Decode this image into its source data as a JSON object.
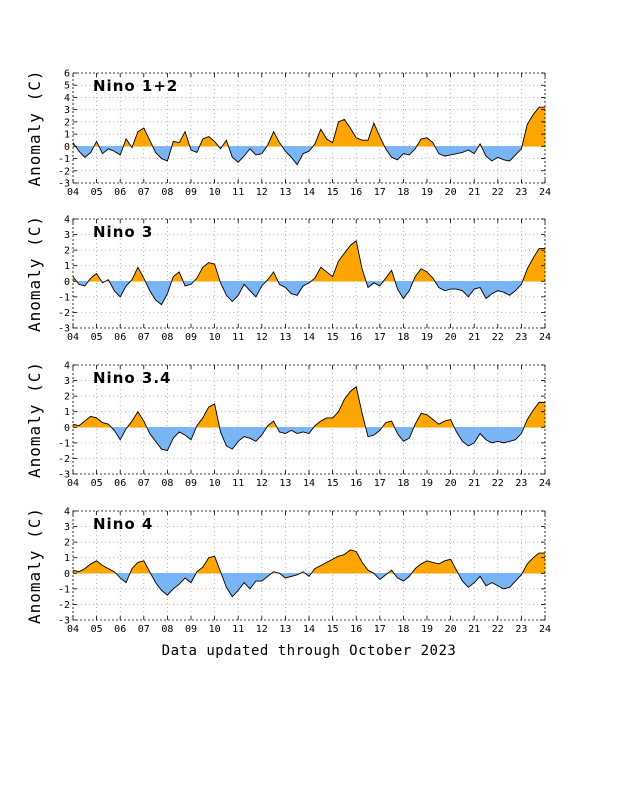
{
  "footer": "Data updated through October 2023",
  "colors": {
    "positive": "#ffa500",
    "negative": "#79b4f5",
    "line": "#000000",
    "grid": "#999999"
  },
  "chart_data": [
    {
      "type": "area",
      "title": "Nino 1+2",
      "ylabel": "Anomaly (C)",
      "ylim": [
        -3,
        6
      ],
      "yticks": [
        -3,
        -2,
        -1,
        0,
        1,
        2,
        3,
        4,
        5,
        6
      ],
      "xlim": [
        2004,
        2024
      ],
      "xticks": [
        "04",
        "05",
        "06",
        "07",
        "08",
        "09",
        "10",
        "11",
        "12",
        "13",
        "14",
        "15",
        "16",
        "17",
        "18",
        "19",
        "20",
        "21",
        "22",
        "23",
        "24"
      ],
      "grid": true,
      "x": [
        2004.0,
        2004.25,
        2004.5,
        2004.75,
        2005.0,
        2005.25,
        2005.5,
        2005.75,
        2006.0,
        2006.25,
        2006.5,
        2006.75,
        2007.0,
        2007.25,
        2007.5,
        2007.75,
        2008.0,
        2008.25,
        2008.5,
        2008.75,
        2009.0,
        2009.25,
        2009.5,
        2009.75,
        2010.0,
        2010.25,
        2010.5,
        2010.75,
        2011.0,
        2011.25,
        2011.5,
        2011.75,
        2012.0,
        2012.25,
        2012.5,
        2012.75,
        2013.0,
        2013.25,
        2013.5,
        2013.75,
        2014.0,
        2014.25,
        2014.5,
        2014.75,
        2015.0,
        2015.25,
        2015.5,
        2015.75,
        2016.0,
        2016.25,
        2016.5,
        2016.75,
        2017.0,
        2017.25,
        2017.5,
        2017.75,
        2018.0,
        2018.25,
        2018.5,
        2018.75,
        2019.0,
        2019.25,
        2019.5,
        2019.75,
        2020.0,
        2020.25,
        2020.5,
        2020.75,
        2021.0,
        2021.25,
        2021.5,
        2021.75,
        2022.0,
        2022.25,
        2022.5,
        2022.75,
        2023.0,
        2023.25,
        2023.5,
        2023.75
      ],
      "values": [
        0.3,
        -0.4,
        -0.9,
        -0.5,
        0.4,
        -0.6,
        -0.2,
        -0.4,
        -0.7,
        0.6,
        -0.1,
        1.2,
        1.5,
        0.5,
        -0.5,
        -1.0,
        -1.2,
        0.4,
        0.3,
        1.2,
        -0.3,
        -0.5,
        0.6,
        0.8,
        0.4,
        -0.2,
        0.5,
        -0.9,
        -1.3,
        -0.8,
        -0.2,
        -0.7,
        -0.6,
        0.1,
        1.2,
        0.3,
        -0.4,
        -0.9,
        -1.5,
        -0.6,
        -0.4,
        0.2,
        1.4,
        0.6,
        0.3,
        2.0,
        2.2,
        1.5,
        0.7,
        0.5,
        0.5,
        1.9,
        0.8,
        -0.2,
        -0.9,
        -1.1,
        -0.6,
        -0.7,
        -0.2,
        0.6,
        0.7,
        0.3,
        -0.6,
        -0.8,
        -0.7,
        -0.6,
        -0.5,
        -0.3,
        -0.6,
        0.2,
        -0.8,
        -1.2,
        -0.9,
        -1.1,
        -1.2,
        -0.7,
        -0.2,
        1.8,
        2.6,
        3.2
      ]
    },
    {
      "type": "area",
      "title": "Nino 3",
      "ylabel": "Anomaly (C)",
      "ylim": [
        -3,
        4
      ],
      "yticks": [
        -3,
        -2,
        -1,
        0,
        1,
        2,
        3,
        4
      ],
      "xlim": [
        2004,
        2024
      ],
      "xticks": [
        "04",
        "05",
        "06",
        "07",
        "08",
        "09",
        "10",
        "11",
        "12",
        "13",
        "14",
        "15",
        "16",
        "17",
        "18",
        "19",
        "20",
        "21",
        "22",
        "23",
        "24"
      ],
      "grid": true,
      "x": [
        2004.0,
        2004.25,
        2004.5,
        2004.75,
        2005.0,
        2005.25,
        2005.5,
        2005.75,
        2006.0,
        2006.25,
        2006.5,
        2006.75,
        2007.0,
        2007.25,
        2007.5,
        2007.75,
        2008.0,
        2008.25,
        2008.5,
        2008.75,
        2009.0,
        2009.25,
        2009.5,
        2009.75,
        2010.0,
        2010.25,
        2010.5,
        2010.75,
        2011.0,
        2011.25,
        2011.5,
        2011.75,
        2012.0,
        2012.25,
        2012.5,
        2012.75,
        2013.0,
        2013.25,
        2013.5,
        2013.75,
        2014.0,
        2014.25,
        2014.5,
        2014.75,
        2015.0,
        2015.25,
        2015.5,
        2015.75,
        2016.0,
        2016.25,
        2016.5,
        2016.75,
        2017.0,
        2017.25,
        2017.5,
        2017.75,
        2018.0,
        2018.25,
        2018.5,
        2018.75,
        2019.0,
        2019.25,
        2019.5,
        2019.75,
        2020.0,
        2020.25,
        2020.5,
        2020.75,
        2021.0,
        2021.25,
        2021.5,
        2021.75,
        2022.0,
        2022.25,
        2022.5,
        2022.75,
        2023.0,
        2023.25,
        2023.5,
        2023.75
      ],
      "values": [
        0.3,
        -0.2,
        -0.3,
        0.2,
        0.5,
        -0.1,
        0.1,
        -0.6,
        -1.0,
        -0.3,
        0.1,
        0.9,
        0.2,
        -0.6,
        -1.2,
        -1.5,
        -0.8,
        0.3,
        0.6,
        -0.3,
        -0.2,
        0.2,
        0.9,
        1.2,
        1.1,
        -0.1,
        -0.9,
        -1.3,
        -0.9,
        -0.2,
        -0.6,
        -1.0,
        -0.3,
        0.1,
        0.6,
        -0.2,
        -0.4,
        -0.8,
        -0.9,
        -0.3,
        -0.1,
        0.2,
        0.9,
        0.6,
        0.3,
        1.3,
        1.8,
        2.3,
        2.6,
        0.8,
        -0.4,
        -0.1,
        -0.3,
        0.2,
        0.7,
        -0.5,
        -1.1,
        -0.6,
        0.3,
        0.8,
        0.6,
        0.2,
        -0.4,
        -0.6,
        -0.5,
        -0.5,
        -0.6,
        -1.0,
        -0.5,
        -0.4,
        -1.1,
        -0.8,
        -0.6,
        -0.7,
        -0.9,
        -0.6,
        -0.2,
        0.8,
        1.5,
        2.1
      ]
    },
    {
      "type": "area",
      "title": "Nino 3.4",
      "ylabel": "Anomaly (C)",
      "ylim": [
        -3,
        4
      ],
      "yticks": [
        -3,
        -2,
        -1,
        0,
        1,
        2,
        3,
        4
      ],
      "xlim": [
        2004,
        2024
      ],
      "xticks": [
        "04",
        "05",
        "06",
        "07",
        "08",
        "09",
        "10",
        "11",
        "12",
        "13",
        "14",
        "15",
        "16",
        "17",
        "18",
        "19",
        "20",
        "21",
        "22",
        "23",
        "24"
      ],
      "grid": true,
      "x": [
        2004.0,
        2004.25,
        2004.5,
        2004.75,
        2005.0,
        2005.25,
        2005.5,
        2005.75,
        2006.0,
        2006.25,
        2006.5,
        2006.75,
        2007.0,
        2007.25,
        2007.5,
        2007.75,
        2008.0,
        2008.25,
        2008.5,
        2008.75,
        2009.0,
        2009.25,
        2009.5,
        2009.75,
        2010.0,
        2010.25,
        2010.5,
        2010.75,
        2011.0,
        2011.25,
        2011.5,
        2011.75,
        2012.0,
        2012.25,
        2012.5,
        2012.75,
        2013.0,
        2013.25,
        2013.5,
        2013.75,
        2014.0,
        2014.25,
        2014.5,
        2014.75,
        2015.0,
        2015.25,
        2015.5,
        2015.75,
        2016.0,
        2016.25,
        2016.5,
        2016.75,
        2017.0,
        2017.25,
        2017.5,
        2017.75,
        2018.0,
        2018.25,
        2018.5,
        2018.75,
        2019.0,
        2019.25,
        2019.5,
        2019.75,
        2020.0,
        2020.25,
        2020.5,
        2020.75,
        2021.0,
        2021.25,
        2021.5,
        2021.75,
        2022.0,
        2022.25,
        2022.5,
        2022.75,
        2023.0,
        2023.25,
        2023.5,
        2023.75
      ],
      "values": [
        0.2,
        0.1,
        0.4,
        0.7,
        0.6,
        0.3,
        0.2,
        -0.2,
        -0.8,
        -0.1,
        0.4,
        1.0,
        0.4,
        -0.4,
        -0.9,
        -1.4,
        -1.5,
        -0.7,
        -0.3,
        -0.5,
        -0.8,
        0.1,
        0.6,
        1.3,
        1.5,
        -0.3,
        -1.2,
        -1.4,
        -0.9,
        -0.6,
        -0.7,
        -0.9,
        -0.5,
        0.1,
        0.4,
        -0.3,
        -0.4,
        -0.2,
        -0.4,
        -0.3,
        -0.4,
        0.1,
        0.4,
        0.6,
        0.6,
        1.0,
        1.8,
        2.3,
        2.6,
        0.9,
        -0.6,
        -0.5,
        -0.2,
        0.3,
        0.4,
        -0.4,
        -0.9,
        -0.7,
        0.2,
        0.9,
        0.8,
        0.5,
        0.2,
        0.4,
        0.5,
        -0.3,
        -0.9,
        -1.2,
        -1.0,
        -0.4,
        -0.8,
        -1.0,
        -0.9,
        -1.0,
        -0.9,
        -0.8,
        -0.4,
        0.5,
        1.1,
        1.6
      ]
    },
    {
      "type": "area",
      "title": "Nino 4",
      "ylabel": "Anomaly (C)",
      "ylim": [
        -3,
        4
      ],
      "yticks": [
        -3,
        -2,
        -1,
        0,
        1,
        2,
        3,
        4
      ],
      "xlim": [
        2004,
        2024
      ],
      "xticks": [
        "04",
        "05",
        "06",
        "07",
        "08",
        "09",
        "10",
        "11",
        "12",
        "13",
        "14",
        "15",
        "16",
        "17",
        "18",
        "19",
        "20",
        "21",
        "22",
        "23",
        "24"
      ],
      "grid": true,
      "x": [
        2004.0,
        2004.25,
        2004.5,
        2004.75,
        2005.0,
        2005.25,
        2005.5,
        2005.75,
        2006.0,
        2006.25,
        2006.5,
        2006.75,
        2007.0,
        2007.25,
        2007.5,
        2007.75,
        2008.0,
        2008.25,
        2008.5,
        2008.75,
        2009.0,
        2009.25,
        2009.5,
        2009.75,
        2010.0,
        2010.25,
        2010.5,
        2010.75,
        2011.0,
        2011.25,
        2011.5,
        2011.75,
        2012.0,
        2012.25,
        2012.5,
        2012.75,
        2013.0,
        2013.25,
        2013.5,
        2013.75,
        2014.0,
        2014.25,
        2014.5,
        2014.75,
        2015.0,
        2015.25,
        2015.5,
        2015.75,
        2016.0,
        2016.25,
        2016.5,
        2016.75,
        2017.0,
        2017.25,
        2017.5,
        2017.75,
        2018.0,
        2018.25,
        2018.5,
        2018.75,
        2019.0,
        2019.25,
        2019.5,
        2019.75,
        2020.0,
        2020.25,
        2020.5,
        2020.75,
        2021.0,
        2021.25,
        2021.5,
        2021.75,
        2022.0,
        2022.25,
        2022.5,
        2022.75,
        2023.0,
        2023.25,
        2023.5,
        2023.75
      ],
      "values": [
        0.2,
        0.1,
        0.3,
        0.6,
        0.8,
        0.5,
        0.3,
        0.1,
        -0.3,
        -0.6,
        0.3,
        0.7,
        0.8,
        0.1,
        -0.6,
        -1.1,
        -1.4,
        -1.0,
        -0.7,
        -0.3,
        -0.6,
        0.1,
        0.4,
        1.0,
        1.1,
        0.1,
        -0.9,
        -1.5,
        -1.1,
        -0.6,
        -1.0,
        -0.5,
        -0.5,
        -0.2,
        0.1,
        0.0,
        -0.3,
        -0.2,
        -0.1,
        0.1,
        -0.2,
        0.3,
        0.5,
        0.7,
        0.9,
        1.1,
        1.2,
        1.5,
        1.4,
        0.7,
        0.2,
        0.0,
        -0.4,
        -0.1,
        0.2,
        -0.3,
        -0.5,
        -0.2,
        0.3,
        0.6,
        0.8,
        0.7,
        0.6,
        0.8,
        0.9,
        0.2,
        -0.5,
        -0.9,
        -0.6,
        -0.2,
        -0.8,
        -0.6,
        -0.8,
        -1.0,
        -0.9,
        -0.5,
        -0.1,
        0.6,
        1.0,
        1.3
      ]
    }
  ]
}
